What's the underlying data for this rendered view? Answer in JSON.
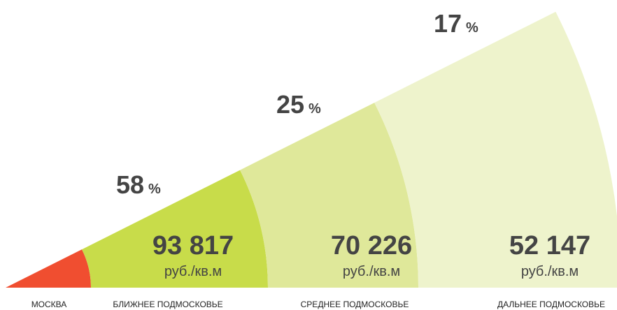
{
  "zones": [
    {
      "name": "МОСКВА"
    },
    {
      "name": "БЛИЖНЕЕ ПОДМОСКОВЬЕ",
      "price": "93 817",
      "unit": "руб./кв.м",
      "share": "58",
      "share_unit": "%"
    },
    {
      "name": "СРЕДНЕЕ ПОДМОСКОВЬЕ",
      "price": "70 226",
      "unit": "руб./кв.м",
      "share": "25",
      "share_unit": "%"
    },
    {
      "name": "ДАЛЬНЕЕ ПОДМОСКОВЬЕ",
      "price": "52 147",
      "unit": "руб./кв.м",
      "share": "17",
      "share_unit": "%"
    }
  ]
}
